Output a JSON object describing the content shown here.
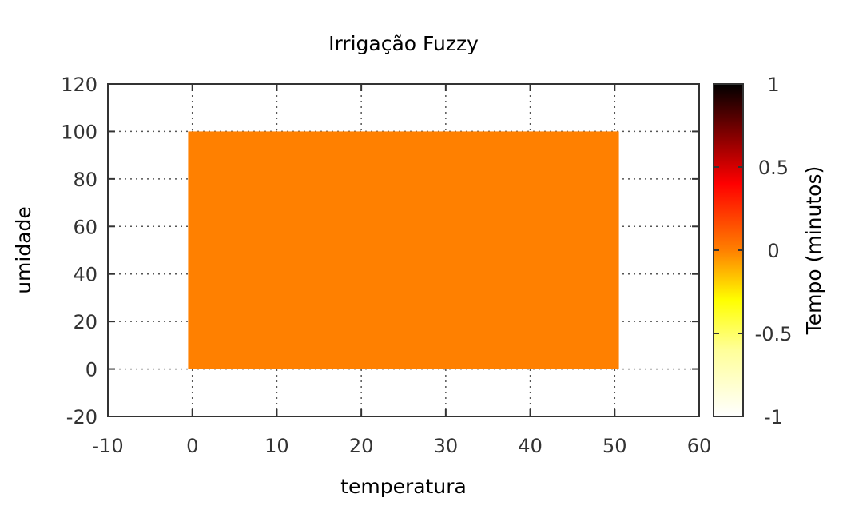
{
  "chart_data": {
    "type": "heatmap",
    "title": "Irrigação Fuzzy",
    "xlabel": "temperatura",
    "ylabel": "umidade",
    "colorbar_label": "Tempo (minutos)",
    "xlim": [
      -10,
      60
    ],
    "ylim": [
      -20,
      120
    ],
    "xticks": [
      -10,
      0,
      10,
      20,
      30,
      40,
      50,
      60
    ],
    "yticks": [
      -20,
      0,
      20,
      40,
      60,
      80,
      100,
      120
    ],
    "colorbar_range": [
      -1,
      1
    ],
    "colorbar_ticks": [
      -1,
      -0.5,
      0,
      0.5,
      1
    ],
    "colorbar_tick_labels": [
      "-1",
      "-0.5",
      "0",
      "0.5",
      "1"
    ],
    "colormap": "hot (white-yellow-orange-red-black)",
    "grid": true,
    "region": {
      "x": [
        0,
        50
      ],
      "y": [
        0,
        100
      ],
      "value": 0
    }
  },
  "colors": {
    "fill": "#ff8000",
    "grid": "#555555",
    "axis": "#333333"
  }
}
